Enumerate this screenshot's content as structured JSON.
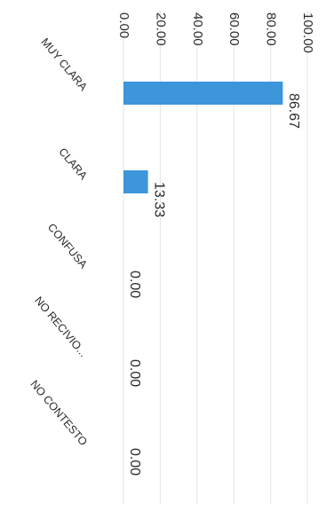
{
  "chart_data": {
    "type": "bar",
    "orientation": "rotated-90-clockwise",
    "categories": [
      "MUY CLARA",
      "CLARA",
      "CONFUSA",
      "NO RECIVIO...",
      "NO CONTESTO"
    ],
    "values": [
      86.67,
      13.33,
      0.0,
      0.0,
      0.0
    ],
    "value_labels": [
      "86.67",
      "13.33",
      "0.00",
      "0.00",
      "0.00"
    ],
    "tick_labels": [
      "0.00",
      "20.00",
      "40.00",
      "60.00",
      "80.00",
      "100.00"
    ],
    "ylim": [
      0,
      100
    ],
    "grid": true,
    "legend": "none",
    "bar_color": "#3d95da",
    "grid_color": "#e4e4e4",
    "text_color": "#2b2b2b"
  }
}
